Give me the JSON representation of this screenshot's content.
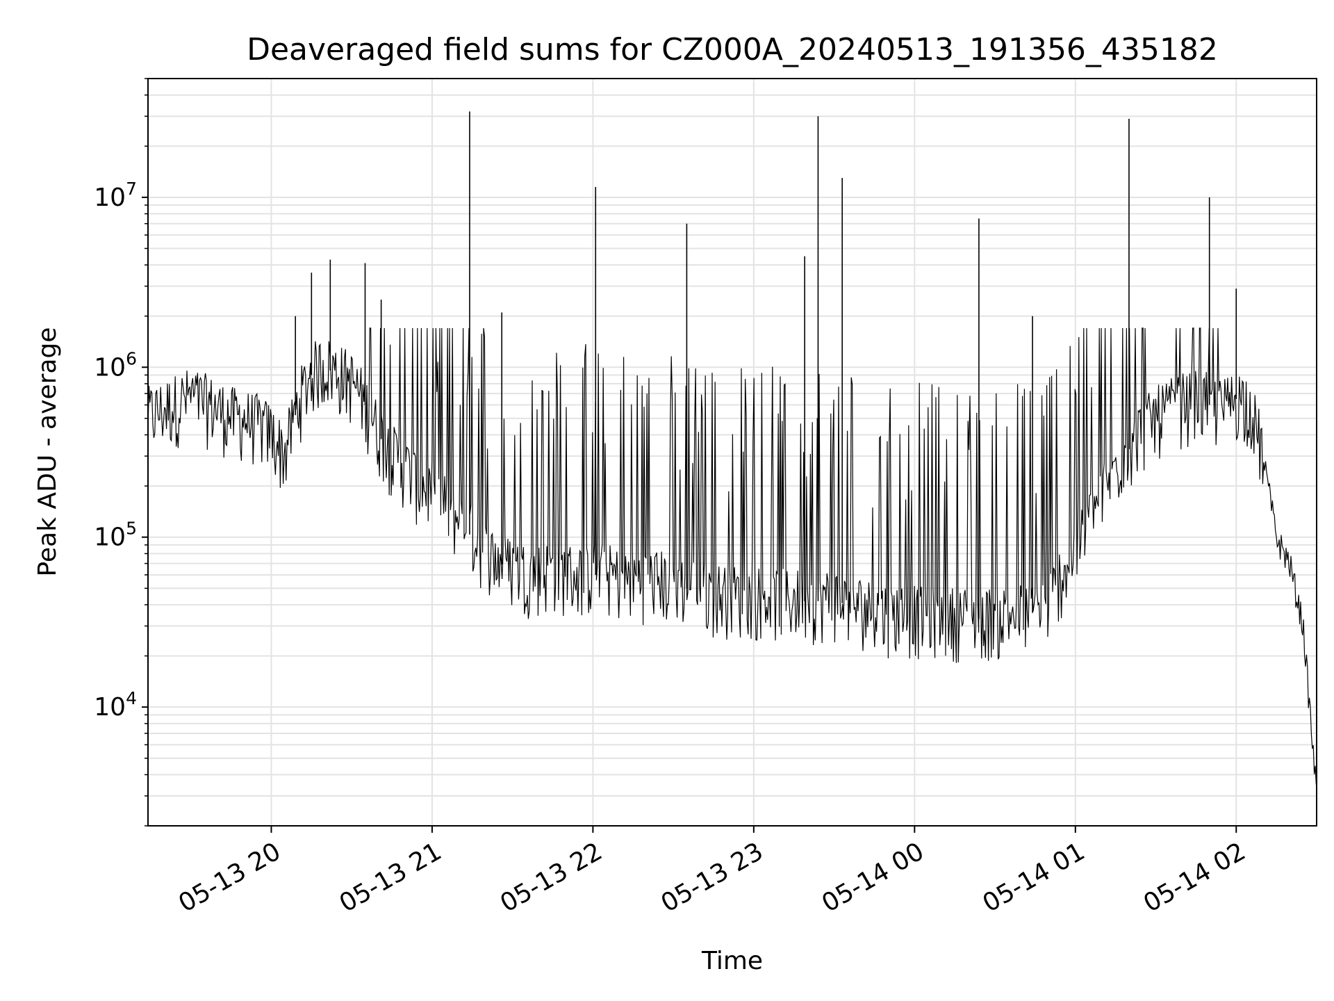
{
  "chart_data": {
    "type": "line",
    "title": "Deaveraged field sums for CZ000A_20240513_191356_435182",
    "xlabel": "Time",
    "ylabel": "Peak ADU - average",
    "yscale": "log",
    "grid": true,
    "x_tick_labels": [
      "05-13 20",
      "05-13 21",
      "05-13 22",
      "05-13 23",
      "05-14 00",
      "05-14 01",
      "05-14 02"
    ],
    "x_ticks": [
      "2024-05-13 20:00",
      "2024-05-13 21:00",
      "2024-05-13 22:00",
      "2024-05-13 23:00",
      "2024-05-14 00:00",
      "2024-05-14 01:00",
      "2024-05-14 02:00"
    ],
    "y_ticks": [
      10000,
      100000,
      1000000,
      10000000
    ],
    "y_tick_labels": [
      {
        "base": "10",
        "exp": "4"
      },
      {
        "base": "10",
        "exp": "5"
      },
      {
        "base": "10",
        "exp": "6"
      },
      {
        "base": "10",
        "exp": "7"
      }
    ],
    "xlim": [
      "2024-05-13 19:14",
      "2024-05-14 02:30"
    ],
    "ylim": [
      2000,
      50000000
    ],
    "series": [
      {
        "color": "#000000",
        "x": [
          "2024-05-13 19:14",
          "2024-05-13 19:20",
          "2024-05-13 19:25",
          "2024-05-13 19:30",
          "2024-05-13 19:35",
          "2024-05-13 19:40",
          "2024-05-13 19:45",
          "2024-05-13 19:50",
          "2024-05-13 19:55",
          "2024-05-13 20:00",
          "2024-05-13 20:05",
          "2024-05-13 20:10",
          "2024-05-13 20:15",
          "2024-05-13 20:20",
          "2024-05-13 20:25",
          "2024-05-13 20:30",
          "2024-05-13 20:35",
          "2024-05-13 20:40",
          "2024-05-13 20:45",
          "2024-05-13 20:50",
          "2024-05-13 20:55",
          "2024-05-13 21:00",
          "2024-05-13 21:05",
          "2024-05-13 21:10",
          "2024-05-13 21:15",
          "2024-05-13 21:20",
          "2024-05-13 21:25",
          "2024-05-13 21:30",
          "2024-05-13 21:35",
          "2024-05-13 21:40",
          "2024-05-13 21:45",
          "2024-05-13 21:50",
          "2024-05-13 21:55",
          "2024-05-13 22:00",
          "2024-05-13 22:05",
          "2024-05-13 22:10",
          "2024-05-13 22:15",
          "2024-05-13 22:20",
          "2024-05-13 22:25",
          "2024-05-13 22:30",
          "2024-05-13 22:35",
          "2024-05-13 22:40",
          "2024-05-13 22:45",
          "2024-05-13 22:50",
          "2024-05-13 22:55",
          "2024-05-13 23:00",
          "2024-05-13 23:05",
          "2024-05-13 23:10",
          "2024-05-13 23:15",
          "2024-05-13 23:20",
          "2024-05-13 23:25",
          "2024-05-13 23:30",
          "2024-05-13 23:35",
          "2024-05-13 23:40",
          "2024-05-13 23:45",
          "2024-05-13 23:50",
          "2024-05-13 23:55",
          "2024-05-14 00:00",
          "2024-05-14 00:05",
          "2024-05-14 00:10",
          "2024-05-14 00:15",
          "2024-05-14 00:20",
          "2024-05-14 00:25",
          "2024-05-14 00:30",
          "2024-05-14 00:35",
          "2024-05-14 00:40",
          "2024-05-14 00:45",
          "2024-05-14 00:50",
          "2024-05-14 00:55",
          "2024-05-14 01:00",
          "2024-05-14 01:05",
          "2024-05-14 01:10",
          "2024-05-14 01:15",
          "2024-05-14 01:20",
          "2024-05-14 01:25",
          "2024-05-14 01:30",
          "2024-05-14 01:35",
          "2024-05-14 01:40",
          "2024-05-14 01:45",
          "2024-05-14 01:50",
          "2024-05-14 01:55",
          "2024-05-14 02:00",
          "2024-05-14 02:05",
          "2024-05-14 02:10",
          "2024-05-14 02:15",
          "2024-05-14 02:20",
          "2024-05-14 02:25",
          "2024-05-14 02:30"
        ],
        "y": [
          500000,
          550000,
          600000,
          650000,
          600000,
          550000,
          500000,
          480000,
          450000,
          400000,
          300000,
          600000,
          900000,
          1000000,
          900000,
          800000,
          600000,
          400000,
          300000,
          250000,
          200000,
          180000,
          150000,
          120000,
          100000,
          80000,
          70000,
          65000,
          60000,
          60000,
          62000,
          60000,
          58000,
          60000,
          60000,
          55000,
          55000,
          55000,
          55000,
          50000,
          50000,
          48000,
          46000,
          45000,
          44000,
          44000,
          43000,
          42000,
          42000,
          42000,
          42000,
          42000,
          40000,
          38000,
          36000,
          35000,
          35000,
          34000,
          34000,
          34000,
          33000,
          33000,
          33000,
          33000,
          34000,
          35000,
          36000,
          40000,
          60000,
          80000,
          120000,
          180000,
          250000,
          330000,
          420000,
          500000,
          550000,
          600000,
          620000,
          600000,
          550000,
          650000,
          600000,
          300000,
          100000,
          70000,
          30000,
          3000
        ]
      }
    ],
    "spikes": [
      {
        "x": "2024-05-13 20:09",
        "y": 2000000
      },
      {
        "x": "2024-05-13 20:15",
        "y": 3600000
      },
      {
        "x": "2024-05-13 20:22",
        "y": 4300000
      },
      {
        "x": "2024-05-13 20:35",
        "y": 4100000
      },
      {
        "x": "2024-05-13 20:41",
        "y": 2500000
      },
      {
        "x": "2024-05-13 21:14",
        "y": 32000000
      },
      {
        "x": "2024-05-13 21:26",
        "y": 2100000
      },
      {
        "x": "2024-05-13 22:01",
        "y": 11500000
      },
      {
        "x": "2024-05-13 22:35",
        "y": 7000000
      },
      {
        "x": "2024-05-13 23:19",
        "y": 4500000
      },
      {
        "x": "2024-05-13 23:24",
        "y": 30000000
      },
      {
        "x": "2024-05-13 23:33",
        "y": 13000000
      },
      {
        "x": "2024-05-14 00:24",
        "y": 7500000
      },
      {
        "x": "2024-05-14 00:44",
        "y": 2000000
      },
      {
        "x": "2024-05-14 01:20",
        "y": 29000000
      },
      {
        "x": "2024-05-14 01:50",
        "y": 10000000
      },
      {
        "x": "2024-05-14 02:00",
        "y": 2900000
      }
    ]
  }
}
